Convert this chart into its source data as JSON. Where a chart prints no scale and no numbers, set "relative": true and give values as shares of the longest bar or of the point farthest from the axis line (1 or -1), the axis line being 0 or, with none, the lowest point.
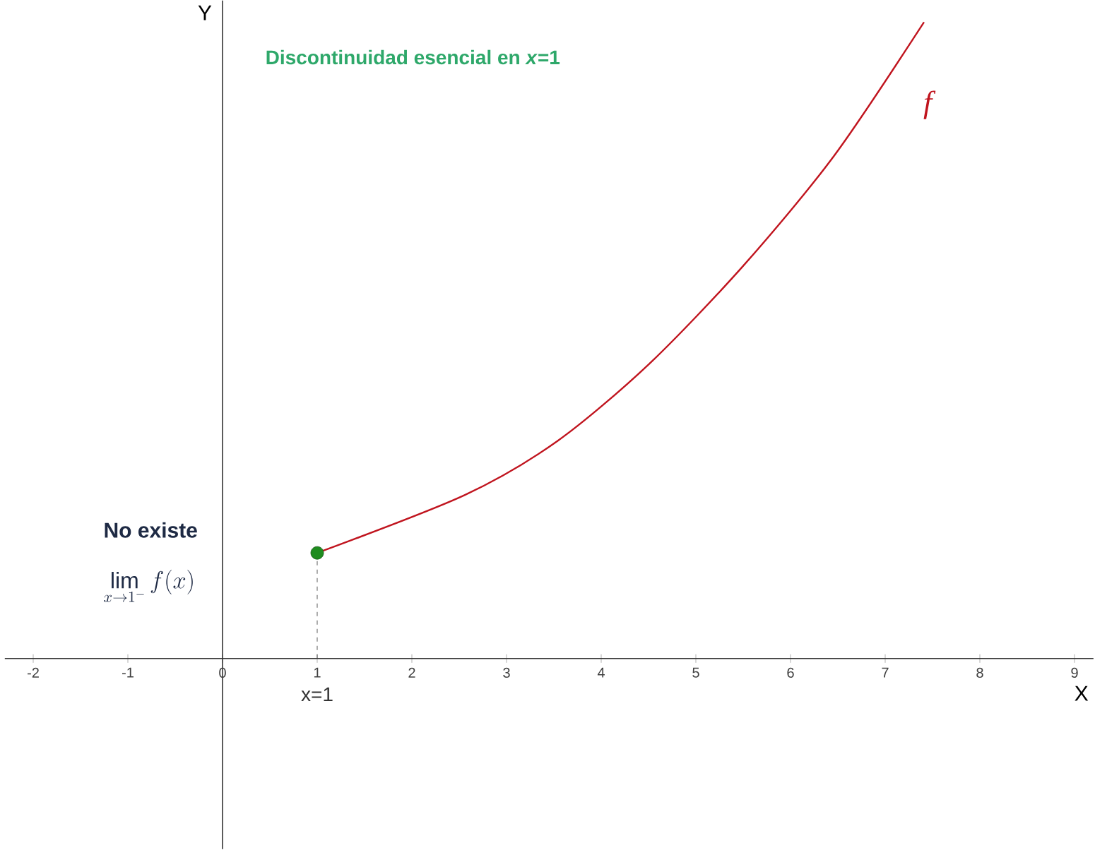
{
  "chart_data": {
    "type": "line",
    "relative": true,
    "xlabel": "X",
    "ylabel": "Y",
    "xlim": [
      -2.3,
      9.2
    ],
    "xticks": [
      -2,
      -1,
      0,
      1,
      2,
      3,
      4,
      5,
      6,
      7,
      8,
      9
    ],
    "series": [
      {
        "name": "f",
        "color": "#c0141e",
        "marker": "none",
        "line_style": "solid",
        "x": [
          1,
          2.56,
          3.54,
          4.5,
          5.5,
          6.46,
          7.41
        ],
        "values": [
          0.166,
          0.257,
          0.342,
          0.462,
          0.617,
          0.79,
          1.0
        ]
      },
      {
        "type": "scatter",
        "color": "#1f8c1f",
        "marker": "circle",
        "x": [
          1
        ],
        "values": [
          0.166
        ]
      }
    ],
    "ref_lines": [
      {
        "axis": "x",
        "value": 1,
        "line_style": "dashed",
        "color": "#333333"
      }
    ],
    "annotations": [
      "Discontinuidad esencial en *x*=1",
      "No existe",
      "\\lim_{x\\to 1^-} f(x)",
      {
        "text": "x=1",
        "x": 1,
        "y": 0
      }
    ]
  }
}
